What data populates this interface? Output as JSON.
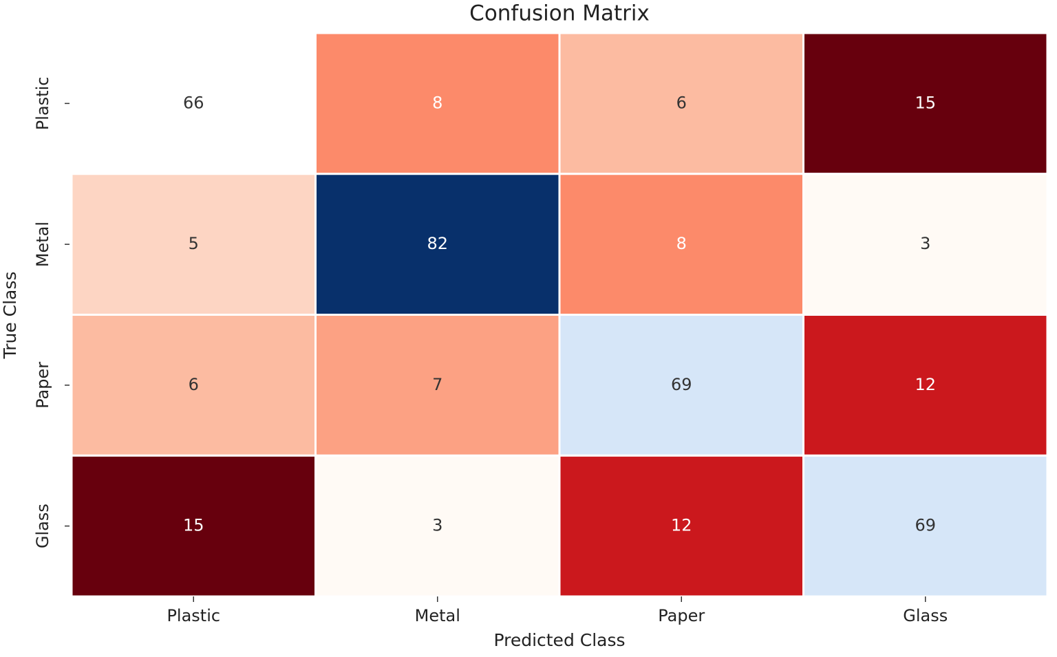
{
  "chart_data": {
    "type": "heatmap",
    "title": "Confusion Matrix",
    "x_label": "Predicted Class",
    "y_label": "True Class",
    "categories": [
      "Plastic",
      "Metal",
      "Paper",
      "Glass"
    ],
    "y_categories": [
      "Plastic",
      "Metal",
      "Paper",
      "Glass"
    ],
    "values": [
      [
        66,
        8,
        6,
        15
      ],
      [
        5,
        82,
        8,
        3
      ],
      [
        6,
        7,
        69,
        12
      ],
      [
        15,
        3,
        12,
        69
      ]
    ],
    "cell_colors": [
      [
        "#ffffff",
        "#fc8a6a",
        "#fcbba1",
        "#67000d"
      ],
      [
        "#fdd5c3",
        "#08306b",
        "#fc8a6a",
        "#fffaf5"
      ],
      [
        "#fcbba1",
        "#fca183",
        "#d6e6f8",
        "#cb181d"
      ],
      [
        "#67000d",
        "#fffaf5",
        "#cb181d",
        "#d6e6f8"
      ]
    ]
  }
}
